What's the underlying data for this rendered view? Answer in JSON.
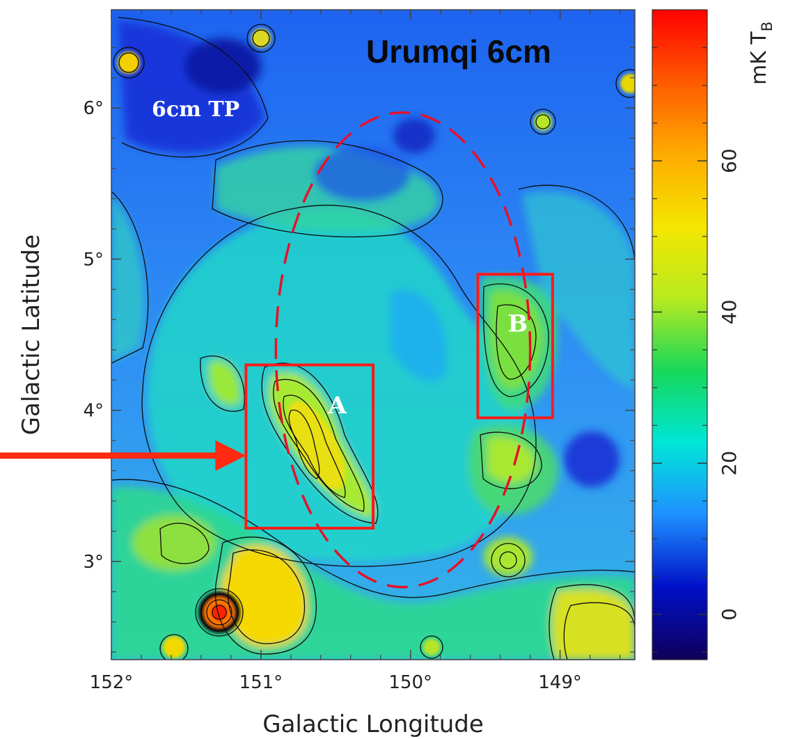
{
  "chart_data": {
    "type": "heatmap",
    "title": "Urumqi 6cm",
    "xlabel": "Galactic Longitude",
    "ylabel": "Galactic Latitude",
    "xlim": [
      152.0,
      148.5
    ],
    "ylim": [
      2.35,
      6.65
    ],
    "x_ticks": [
      {
        "value": 152,
        "label": "152°"
      },
      {
        "value": 151,
        "label": "151°"
      },
      {
        "value": 150,
        "label": "150°"
      },
      {
        "value": 149,
        "label": "149°"
      }
    ],
    "y_ticks": [
      {
        "value": 3,
        "label": "3°"
      },
      {
        "value": 4,
        "label": "4°"
      },
      {
        "value": 5,
        "label": "5°"
      },
      {
        "value": 6,
        "label": "6°"
      }
    ],
    "colorbar": {
      "label": "mK T",
      "label_subscript": "B",
      "range": [
        -6,
        80
      ],
      "ticks": [
        {
          "value": 0,
          "label": "0"
        },
        {
          "value": 20,
          "label": "20"
        },
        {
          "value": 40,
          "label": "40"
        },
        {
          "value": 60,
          "label": "60"
        }
      ],
      "colors": [
        "#10005a",
        "#0010c8",
        "#1f8fff",
        "#00e6d8",
        "#16d85a",
        "#b8ea20",
        "#f5e600",
        "#ffab00",
        "#ff5a00",
        "#ff0000"
      ]
    },
    "annotations": {
      "map_label": "6cm TP",
      "region_a": {
        "label": "A",
        "l_range": [
          151.1,
          150.25
        ],
        "b_range": [
          3.22,
          4.3
        ]
      },
      "region_b": {
        "label": "B",
        "l_range": [
          149.55,
          149.05
        ],
        "b_range": [
          3.95,
          4.9
        ]
      },
      "snr_circle": {
        "center_l": 150.05,
        "center_b": 4.4,
        "radius_l": 0.85,
        "radius_b": 1.57,
        "style": "red dashed"
      },
      "arrow_target": {
        "l": 151.1,
        "b": 3.7
      }
    },
    "emission_features": [
      {
        "l": 150.85,
        "b": 3.85,
        "value": 28,
        "note": "region A ridge"
      },
      {
        "l": 149.3,
        "b": 4.45,
        "value": 14,
        "note": "region B"
      },
      {
        "l": 151.3,
        "b": 2.6,
        "value": 75,
        "note": "point source"
      },
      {
        "l": 150.95,
        "b": 2.6,
        "value": 30,
        "note": "extended source"
      },
      {
        "l": 151.9,
        "b": 6.3,
        "value": 32,
        "note": "point source"
      },
      {
        "l": 151.0,
        "b": 6.5,
        "value": 24,
        "note": "point source"
      },
      {
        "l": 149.2,
        "b": 5.9,
        "value": 15,
        "note": "point source"
      },
      {
        "l": 148.7,
        "b": 2.6,
        "value": 30,
        "note": "extended source"
      },
      {
        "l": 149.2,
        "b": 2.95,
        "value": 16,
        "note": "source"
      },
      {
        "l": 149.3,
        "b": 3.6,
        "value": 14,
        "note": "diffuse"
      },
      {
        "l": 150.0,
        "b": 5.75,
        "value": -4,
        "note": "minimum"
      },
      {
        "l": 151.4,
        "b": 6.0,
        "value": -3,
        "note": "low emission"
      }
    ]
  }
}
